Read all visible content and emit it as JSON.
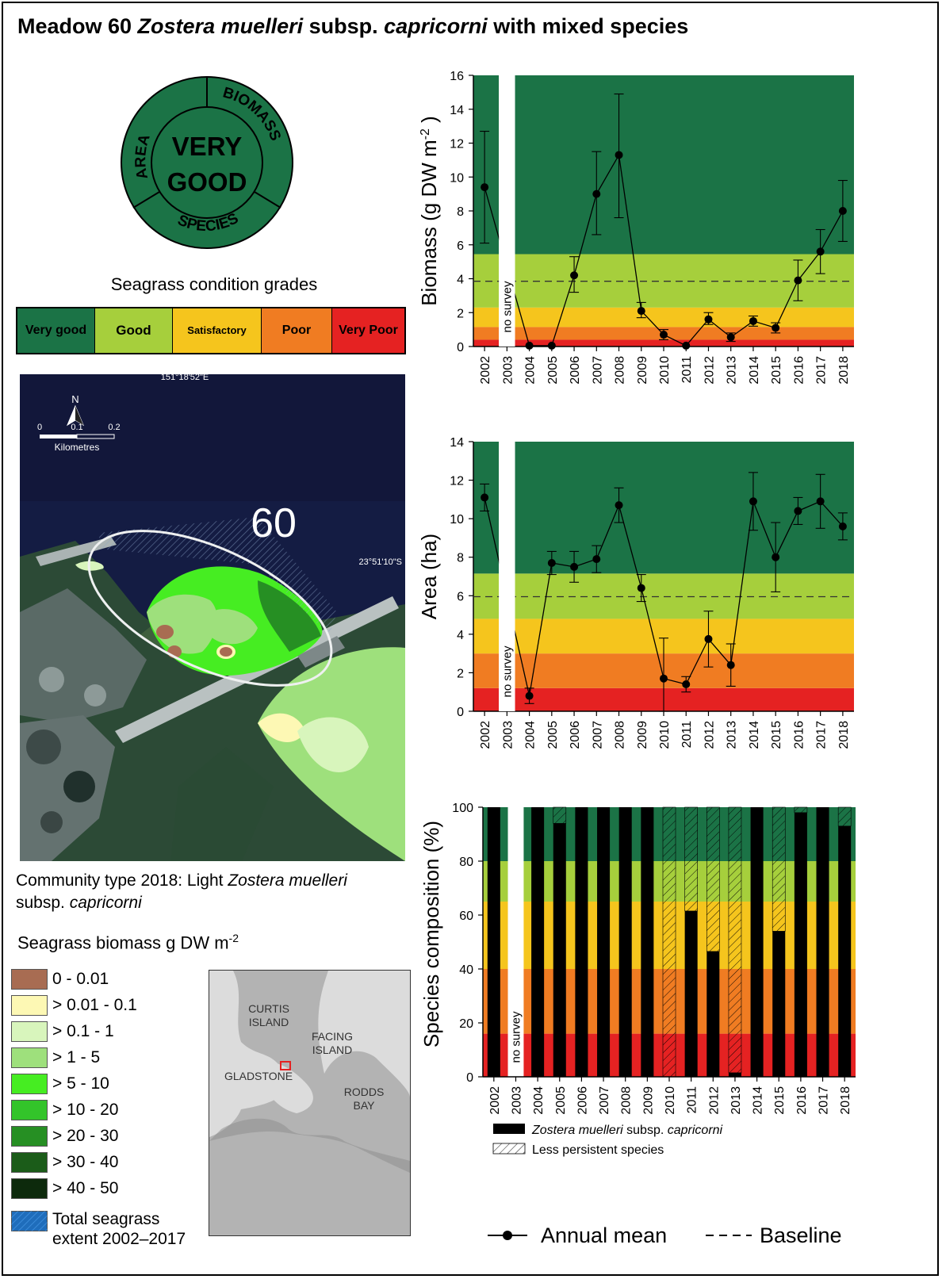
{
  "title": {
    "prefix": "Meadow 60 ",
    "species": "Zostera muelleri",
    "middle": " subsp. ",
    "subsp": "capricorni",
    "suffix": " with mixed species"
  },
  "grade_badge": {
    "center_line1": "VERY",
    "center_line2": "GOOD",
    "ring_labels": [
      "AREA",
      "BIOMASS",
      "SPECIES"
    ],
    "fill": "#1b7346"
  },
  "condition_grades": {
    "title": "Seagrass condition grades",
    "grades": [
      {
        "label": "Very good",
        "color": "#1b7346"
      },
      {
        "label": "Good",
        "color": "#a6cf3c"
      },
      {
        "label": "Satisfactory",
        "color": "#f5c51d"
      },
      {
        "label": "Poor",
        "color": "#f07c22"
      },
      {
        "label": "Very Poor",
        "color": "#e52222"
      }
    ]
  },
  "map": {
    "lon_label": "151°18'52\"E",
    "lat_label": "23°51'10\"S",
    "meadow_label": "60",
    "north_label": "N",
    "scale_ticks": [
      "0",
      "0.1",
      "0.2"
    ],
    "scale_unit": "Kilometres"
  },
  "community": {
    "prefix": "Community type 2018: Light ",
    "species": "Zostera muelleri",
    "middle": " subsp. ",
    "subsp": "capricorni"
  },
  "biomass_legend": {
    "title": "Seagrass biomass g DW m",
    "title_sup": "-2",
    "items": [
      {
        "label": "0 - 0.01",
        "color": "#a86c52"
      },
      {
        "label": "> 0.01 - 0.1",
        "color": "#fdf8b4"
      },
      {
        "label": "> 0.1 - 1",
        "color": "#d8f5bc"
      },
      {
        "label": "> 1 - 5",
        "color": "#9ee07c"
      },
      {
        "label": "> 5 - 10",
        "color": "#46ed22"
      },
      {
        "label": "> 10 - 20",
        "color": "#33c42a"
      },
      {
        "label": "> 20 - 30",
        "color": "#268f23"
      },
      {
        "label": "> 30 - 40",
        "color": "#1b5c19"
      },
      {
        "label": "> 40 - 50",
        "color": "#0d2a0c"
      }
    ],
    "extent_label_line1": "Total seagrass",
    "extent_label_line2": "extent  2002–2017"
  },
  "inset_map": {
    "labels": [
      "CURTIS ISLAND",
      "FACING ISLAND",
      "GLADSTONE",
      "RODDS BAY"
    ]
  },
  "chart_data": [
    {
      "type": "line",
      "id": "biomass",
      "ylabel": "Biomass (g DW m",
      "ylabel_sup": "-2",
      "ylabel_end": " )",
      "ylim": [
        0,
        16
      ],
      "yticks": [
        0,
        2,
        4,
        6,
        8,
        10,
        12,
        14,
        16
      ],
      "x": [
        "2002",
        "2003",
        "2004",
        "2005",
        "2006",
        "2007",
        "2008",
        "2009",
        "2010",
        "2011",
        "2012",
        "2013",
        "2014",
        "2015",
        "2016",
        "2017",
        "2018"
      ],
      "series": [
        {
          "values": [
            9.4,
            null,
            0.05,
            0.05,
            4.2,
            9.0,
            11.3,
            2.1,
            0.7,
            0.05,
            1.6,
            0.55,
            1.5,
            1.1,
            3.9,
            5.6,
            8.0
          ],
          "err_low": [
            6.1,
            null,
            0.0,
            0.0,
            3.2,
            6.6,
            7.6,
            1.7,
            0.4,
            0.0,
            1.3,
            0.3,
            1.2,
            0.8,
            2.7,
            4.3,
            6.2
          ],
          "err_high": [
            12.7,
            null,
            0.1,
            0.1,
            5.3,
            11.5,
            14.9,
            2.6,
            1.0,
            0.1,
            2.0,
            0.8,
            1.8,
            1.4,
            5.1,
            6.9,
            9.8
          ]
        }
      ],
      "baseline": 3.85,
      "bands": [
        {
          "from": 0,
          "to": 0.4,
          "color": "#e52222"
        },
        {
          "from": 0.4,
          "to": 1.15,
          "color": "#f07c22"
        },
        {
          "from": 1.15,
          "to": 2.3,
          "color": "#f5c51d"
        },
        {
          "from": 2.3,
          "to": 5.45,
          "color": "#a6cf3c"
        },
        {
          "from": 5.45,
          "to": 16,
          "color": "#1b7346"
        }
      ],
      "no_survey_index": 1,
      "no_survey_label": "no survey"
    },
    {
      "type": "line",
      "id": "area",
      "ylabel": "Area (ha)",
      "ylim": [
        0,
        14
      ],
      "yticks": [
        0,
        2,
        4,
        6,
        8,
        10,
        12,
        14
      ],
      "x": [
        "2002",
        "2003",
        "2004",
        "2005",
        "2006",
        "2007",
        "2008",
        "2009",
        "2010",
        "2011",
        "2012",
        "2013",
        "2014",
        "2015",
        "2016",
        "2017",
        "2018"
      ],
      "series": [
        {
          "values": [
            11.1,
            null,
            0.8,
            7.7,
            7.5,
            7.9,
            10.7,
            6.4,
            1.7,
            1.4,
            3.75,
            2.4,
            10.9,
            8.0,
            10.4,
            10.9,
            9.6
          ],
          "err_low": [
            10.4,
            null,
            0.4,
            7.1,
            6.7,
            7.2,
            9.8,
            5.7,
            0.0,
            1.0,
            2.3,
            1.3,
            9.4,
            6.2,
            9.7,
            9.5,
            8.9
          ],
          "err_high": [
            11.8,
            null,
            1.2,
            8.3,
            8.3,
            8.6,
            11.6,
            7.1,
            3.8,
            1.8,
            5.2,
            3.5,
            12.4,
            9.8,
            11.1,
            12.3,
            10.3
          ]
        }
      ],
      "baseline": 5.95,
      "bands": [
        {
          "from": 0,
          "to": 1.2,
          "color": "#e52222"
        },
        {
          "from": 1.2,
          "to": 3.0,
          "color": "#f07c22"
        },
        {
          "from": 3.0,
          "to": 4.8,
          "color": "#f5c51d"
        },
        {
          "from": 4.8,
          "to": 7.15,
          "color": "#a6cf3c"
        },
        {
          "from": 7.15,
          "to": 14,
          "color": "#1b7346"
        }
      ],
      "no_survey_index": 1,
      "no_survey_label": "no survey"
    },
    {
      "type": "bar",
      "id": "species",
      "ylabel": "Species composition (%)",
      "ylim": [
        0,
        100
      ],
      "yticks": [
        0,
        20,
        40,
        60,
        80,
        100
      ],
      "x": [
        "2002",
        "2003",
        "2004",
        "2005",
        "2006",
        "2007",
        "2008",
        "2009",
        "2010",
        "2011",
        "2012",
        "2013",
        "2014",
        "2015",
        "2016",
        "2017",
        "2018"
      ],
      "series": [
        {
          "name": "Zostera muelleri subsp. capricorni",
          "values": [
            100,
            null,
            100,
            94,
            100,
            100,
            100,
            100,
            0,
            61.5,
            46.5,
            1.5,
            100,
            54,
            98,
            100,
            93
          ]
        },
        {
          "name": "Less persistent species",
          "values": [
            0,
            null,
            0,
            6,
            0,
            0,
            0,
            0,
            100,
            38.5,
            53.5,
            98.5,
            0,
            46,
            2,
            0,
            7
          ]
        }
      ],
      "bands": [
        {
          "from": 0,
          "to": 16,
          "color": "#e52222"
        },
        {
          "from": 16,
          "to": 40,
          "color": "#f07c22"
        },
        {
          "from": 40,
          "to": 65,
          "color": "#f5c51d"
        },
        {
          "from": 65,
          "to": 80,
          "color": "#a6cf3c"
        },
        {
          "from": 80,
          "to": 100,
          "color": "#1b7346"
        }
      ],
      "no_survey_index": 1,
      "no_survey_label": "no survey",
      "legend": [
        {
          "species": "Zostera muelleri",
          "middle": " subsp. ",
          "subsp": "capricorni"
        },
        {
          "label": "Less persistent species"
        }
      ]
    }
  ],
  "line_legend": {
    "annual_mean": "Annual mean",
    "baseline": "Baseline"
  }
}
